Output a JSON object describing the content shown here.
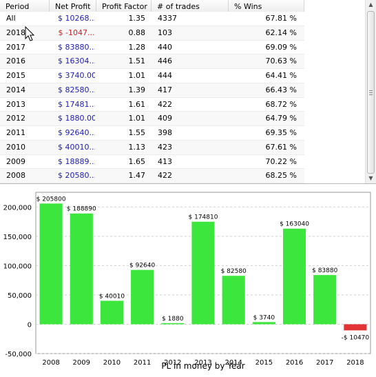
{
  "table": {
    "columns": [
      "Period",
      "Net Profit",
      "Profit Factor",
      "# of trades",
      "% Wins"
    ],
    "rows": [
      {
        "period": "All",
        "net_profit": "$ 10268...",
        "profit_factor": "1.35",
        "trades": "4337",
        "wins": "67.81 %",
        "negative": false
      },
      {
        "period": "2018",
        "net_profit": "$ -1047...",
        "profit_factor": "0.88",
        "trades": "103",
        "wins": "62.14 %",
        "negative": true
      },
      {
        "period": "2017",
        "net_profit": "$ 83880...",
        "profit_factor": "1.28",
        "trades": "440",
        "wins": "69.09 %",
        "negative": false
      },
      {
        "period": "2016",
        "net_profit": "$ 16304...",
        "profit_factor": "1.51",
        "trades": "446",
        "wins": "70.63 %",
        "negative": false
      },
      {
        "period": "2015",
        "net_profit": "$ 3740.00",
        "profit_factor": "1.01",
        "trades": "444",
        "wins": "64.41 %",
        "negative": false
      },
      {
        "period": "2014",
        "net_profit": "$ 82580...",
        "profit_factor": "1.39",
        "trades": "417",
        "wins": "66.43 %",
        "negative": false
      },
      {
        "period": "2013",
        "net_profit": "$ 17481...",
        "profit_factor": "1.61",
        "trades": "422",
        "wins": "68.72 %",
        "negative": false
      },
      {
        "period": "2012",
        "net_profit": "$ 1880.00",
        "profit_factor": "1.01",
        "trades": "409",
        "wins": "64.79 %",
        "negative": false
      },
      {
        "period": "2011",
        "net_profit": "$ 92640...",
        "profit_factor": "1.55",
        "trades": "398",
        "wins": "69.35 %",
        "negative": false
      },
      {
        "period": "2010",
        "net_profit": "$ 40010...",
        "profit_factor": "1.13",
        "trades": "423",
        "wins": "67.61 %",
        "negative": false
      },
      {
        "period": "2009",
        "net_profit": "$ 18889...",
        "profit_factor": "1.65",
        "trades": "413",
        "wins": "70.22 %",
        "negative": false
      },
      {
        "period": "2008",
        "net_profit": "$ 20580...",
        "profit_factor": "1.47",
        "trades": "422",
        "wins": "68.25 %",
        "negative": false
      }
    ]
  },
  "colors": {
    "positive_bar": "#3ce63c",
    "negative_bar": "#e23434",
    "positive_text": "#1b1bb3",
    "negative_text": "#cc2020"
  },
  "chart_data": {
    "type": "bar",
    "xlabel": "PL in money by Year",
    "ylabel": "",
    "ylim": [
      -50000,
      225000
    ],
    "yticks": [
      {
        "value": 200000,
        "label": "200,000"
      },
      {
        "value": 150000,
        "label": "150,000"
      },
      {
        "value": 100000,
        "label": "100,000"
      },
      {
        "value": 50000,
        "label": "50,000"
      },
      {
        "value": 0,
        "label": "0"
      },
      {
        "value": -50000,
        "label": "-50,000"
      }
    ],
    "grid": true,
    "categories": [
      "2008",
      "2009",
      "2010",
      "2011",
      "2012",
      "2013",
      "2014",
      "2015",
      "2016",
      "2017",
      "2018"
    ],
    "values": [
      205800,
      188890,
      40010,
      92640,
      1880,
      174810,
      82580,
      3740,
      163040,
      83880,
      -10470
    ],
    "data_labels": [
      "$ 205800",
      "$ 188890",
      "$ 40010",
      "$ 92640",
      "$ 1880",
      "$ 174810",
      "$ 82580",
      "$ 3740",
      "$ 163040",
      "$ 83880",
      "-$ 10470"
    ]
  }
}
